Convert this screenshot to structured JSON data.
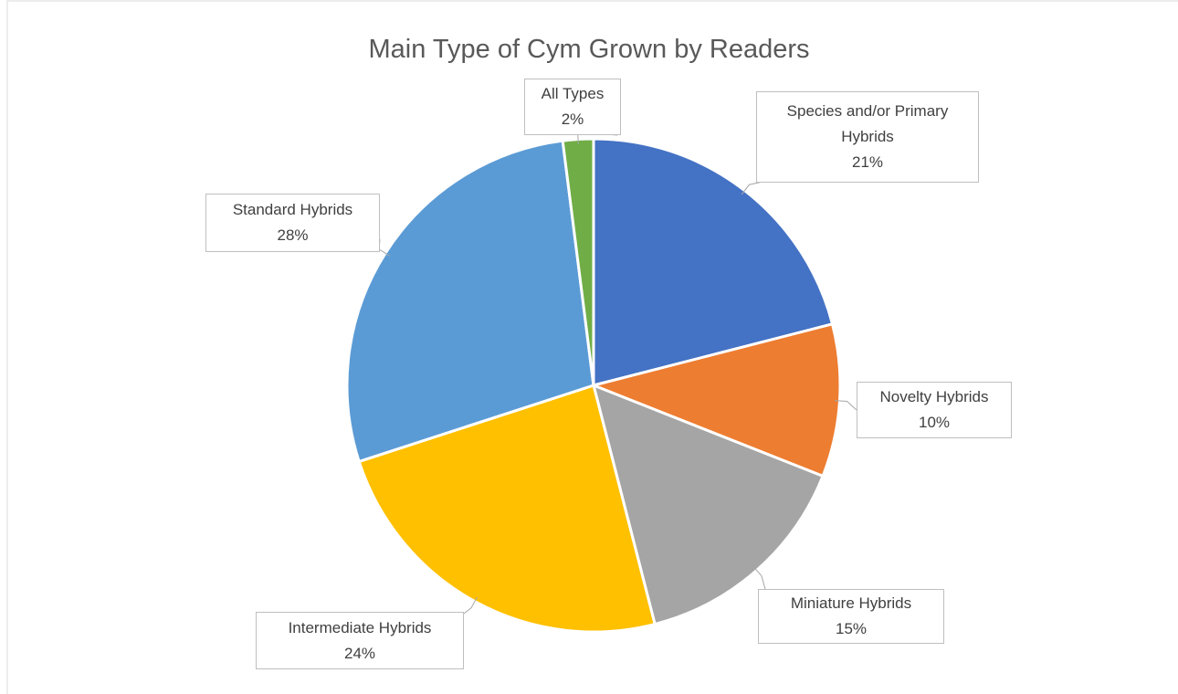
{
  "chart_data": {
    "type": "pie",
    "title": "Main Type of Cym Grown by Readers",
    "categories": [
      "Species and/or Primary Hybrids",
      "Novelty Hybrids",
      "Miniature Hybrids",
      "Intermediate Hybrids",
      "Standard Hybrids",
      "All Types"
    ],
    "values": [
      21,
      10,
      15,
      24,
      28,
      2
    ],
    "value_labels": [
      "21%",
      "10%",
      "15%",
      "24%",
      "28%",
      "2%"
    ],
    "colors": [
      "#4472c4",
      "#ed7d31",
      "#a5a5a5",
      "#ffc000",
      "#5b9bd5",
      "#70ad47"
    ]
  }
}
